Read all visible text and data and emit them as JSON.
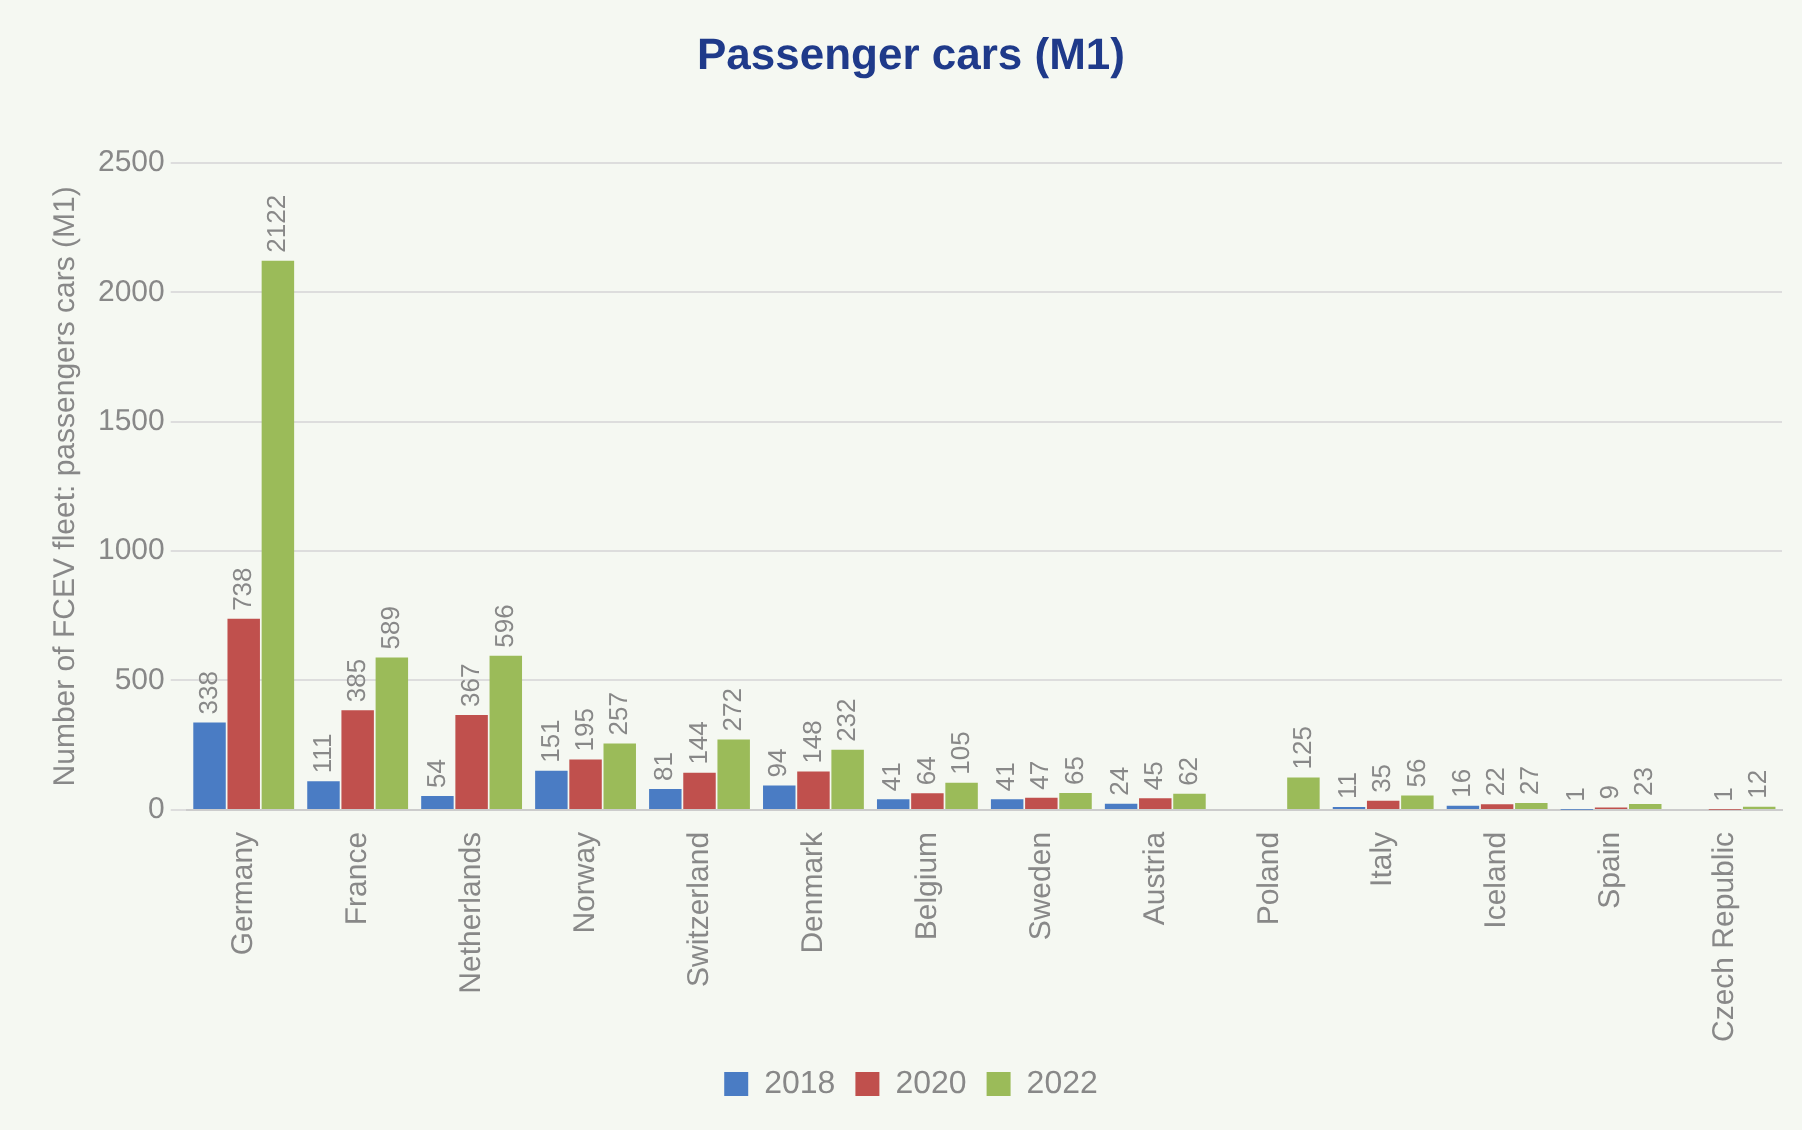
{
  "chart_data": {
    "type": "bar",
    "title": "Passenger cars (M1)",
    "ylabel": "Number of FCEV fleet: passengers cars (M1)",
    "categories": [
      "Germany",
      "France",
      "Netherlands",
      "Norway",
      "Switzerland",
      "Denmark",
      "Belgium",
      "Sweden",
      "Austria",
      "Poland",
      "Italy",
      "Iceland",
      "Spain",
      "Czech Republic"
    ],
    "series": [
      {
        "name": "2018",
        "color": "#4a7cc4",
        "values": [
          338,
          111,
          54,
          151,
          81,
          94,
          41,
          41,
          24,
          null,
          11,
          16,
          1,
          null
        ]
      },
      {
        "name": "2020",
        "color": "#c0504d",
        "values": [
          738,
          385,
          367,
          195,
          144,
          148,
          64,
          47,
          45,
          null,
          35,
          22,
          9,
          1
        ]
      },
      {
        "name": "2022",
        "color": "#9bbb59",
        "values": [
          2122,
          589,
          596,
          257,
          272,
          232,
          105,
          65,
          62,
          125,
          56,
          27,
          23,
          12
        ]
      }
    ],
    "ylim": [
      0,
      2500
    ],
    "yticks": [
      0,
      500,
      1000,
      1500,
      2000,
      2500
    ],
    "grid": "y",
    "legend": "bottom",
    "data_labels": true
  }
}
